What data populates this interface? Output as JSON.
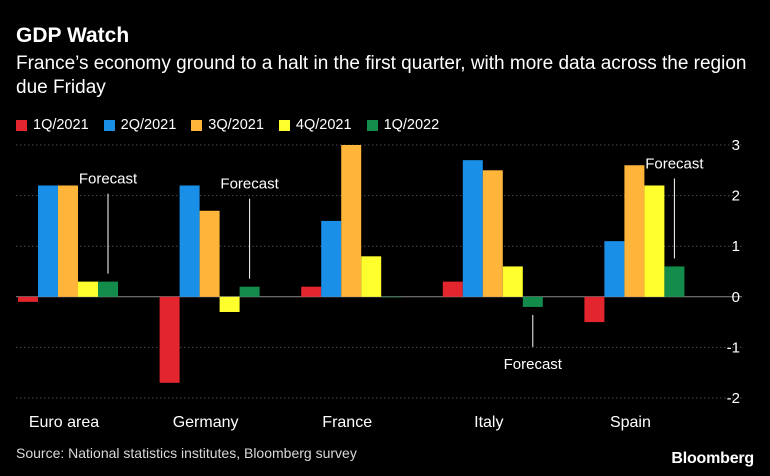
{
  "title": "GDP Watch",
  "subtitle": "France’s economy ground to a halt in the first quarter, with more data across the region due Friday",
  "source": "Source: National statistics institutes, Bloomberg survey",
  "brand": "Bloomberg",
  "chart_data": {
    "type": "bar",
    "categories": [
      "Euro area",
      "Germany",
      "France",
      "Italy",
      "Spain"
    ],
    "series": [
      {
        "name": "1Q/2021",
        "color": "#e3262d",
        "values": [
          -0.1,
          -1.7,
          0.2,
          0.3,
          -0.5
        ]
      },
      {
        "name": "2Q/2021",
        "color": "#1a8fe8",
        "values": [
          2.2,
          2.2,
          1.5,
          2.7,
          1.1
        ]
      },
      {
        "name": "3Q/2021",
        "color": "#ffb43a",
        "values": [
          2.2,
          1.7,
          3.0,
          2.5,
          2.6
        ]
      },
      {
        "name": "4Q/2021",
        "color": "#ffff2e",
        "values": [
          0.3,
          -0.3,
          0.8,
          0.6,
          2.2
        ]
      },
      {
        "name": "1Q/2022",
        "color": "#138c4b",
        "values": [
          0.3,
          0.2,
          0.0,
          -0.2,
          0.6
        ]
      }
    ],
    "ylim": [
      -2,
      3
    ],
    "yticks": [
      -2,
      -1,
      0,
      1,
      2,
      3
    ],
    "grid": true,
    "legend_position": "top-left",
    "annotations": [
      {
        "category": "Euro area",
        "text": "Forecast",
        "side": "above"
      },
      {
        "category": "Germany",
        "text": "Forecast",
        "side": "above"
      },
      {
        "category": "Italy",
        "text": "Forecast",
        "side": "below"
      },
      {
        "category": "Spain",
        "text": "Forecast",
        "side": "above"
      }
    ]
  }
}
